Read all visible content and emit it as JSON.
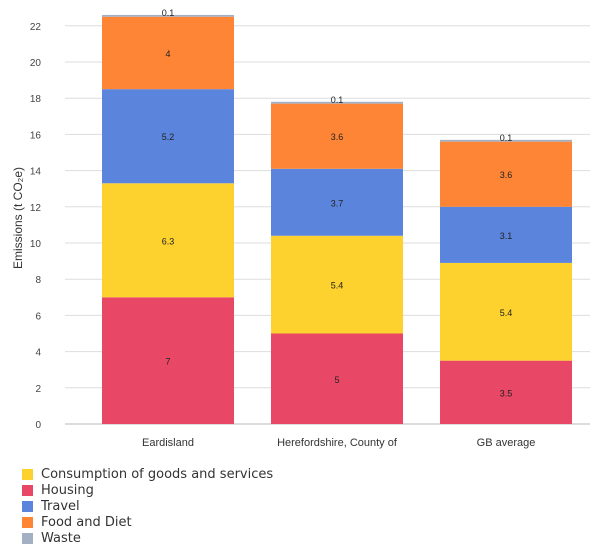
{
  "chart_data": {
    "type": "bar",
    "stacked": true,
    "categories": [
      "Eardisland",
      "Herefordshire, County of",
      "GB average"
    ],
    "series": [
      {
        "name": "Housing",
        "key": "housing",
        "color": "#e84866",
        "values": [
          7,
          5,
          3.5
        ]
      },
      {
        "name": "Consumption of goods and services",
        "key": "consumption",
        "color": "#fdd12e",
        "values": [
          6.3,
          5.4,
          5.4
        ]
      },
      {
        "name": "Travel",
        "key": "travel",
        "color": "#5b84dc",
        "values": [
          5.2,
          3.7,
          3.1
        ]
      },
      {
        "name": "Food and Diet",
        "key": "food",
        "color": "#fd8535",
        "values": [
          4,
          3.6,
          3.6
        ]
      },
      {
        "name": "Waste",
        "key": "waste",
        "color": "#a3b0c4",
        "values": [
          0.1,
          0.1,
          0.1
        ]
      }
    ],
    "data_labels": [
      [
        "7",
        "5",
        "3.5"
      ],
      [
        "6.3",
        "5.4",
        "5.4"
      ],
      [
        "5.2",
        "3.7",
        "3.1"
      ],
      [
        "4",
        "3.6",
        "3.6"
      ],
      [
        "0.1",
        "0.1",
        "0.1"
      ]
    ],
    "ylabel": "Emissions (t CO₂e)",
    "xlabel": "",
    "ylim": [
      0,
      23
    ],
    "yticks": [
      0,
      2,
      4,
      6,
      8,
      10,
      12,
      14,
      16,
      18,
      20,
      22
    ],
    "grid": true,
    "legend_position": "bottom-left",
    "legend": [
      {
        "name": "Consumption of goods and services",
        "color": "#fdd12e"
      },
      {
        "name": "Housing",
        "color": "#e84866"
      },
      {
        "name": "Travel",
        "color": "#5b84dc"
      },
      {
        "name": "Food and Diet",
        "color": "#fd8535"
      },
      {
        "name": "Waste",
        "color": "#a3b0c4"
      }
    ]
  }
}
